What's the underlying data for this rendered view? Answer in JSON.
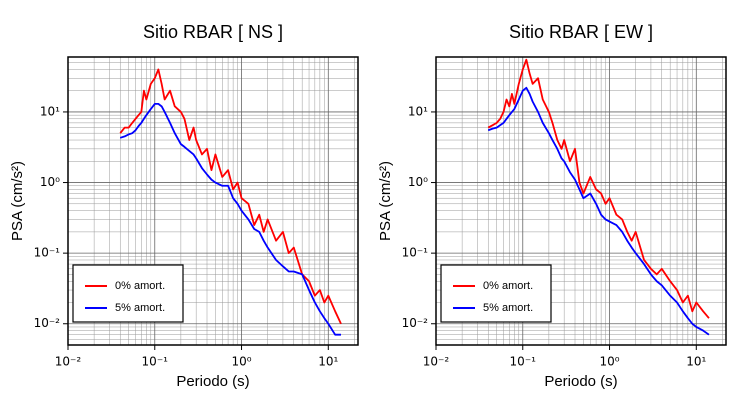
{
  "chart_data": [
    {
      "type": "line",
      "title": "Sitio RBAR [ NS ]",
      "x_label": "Periodo (s)",
      "y_label": "PSA (cm/s²)",
      "log_x": true,
      "log_y": true,
      "grid": true,
      "legend": "lower left",
      "xlim": [
        0.01,
        22
      ],
      "ylim": [
        0.005,
        60
      ],
      "xticks": [
        {
          "value": 0.01,
          "label": "10⁻²"
        },
        {
          "value": 0.1,
          "label": "10⁻¹"
        },
        {
          "value": 1,
          "label": "10⁰"
        },
        {
          "value": 10,
          "label": "10¹"
        }
      ],
      "yticks": [
        {
          "value": 0.01,
          "label": "10⁻²"
        },
        {
          "value": 0.1,
          "label": "10⁻¹"
        },
        {
          "value": 1,
          "label": "10⁰"
        },
        {
          "value": 10,
          "label": "10¹"
        }
      ],
      "x": [
        0.04,
        0.045,
        0.05,
        0.055,
        0.06,
        0.065,
        0.07,
        0.075,
        0.08,
        0.09,
        0.1,
        0.11,
        0.12,
        0.13,
        0.15,
        0.17,
        0.2,
        0.22,
        0.25,
        0.28,
        0.3,
        0.35,
        0.4,
        0.45,
        0.5,
        0.6,
        0.7,
        0.8,
        0.9,
        1.0,
        1.2,
        1.4,
        1.6,
        1.8,
        2.0,
        2.5,
        3.0,
        3.5,
        4.0,
        5.0,
        6.0,
        7.0,
        8.0,
        9.0,
        10,
        12,
        14
      ],
      "series": [
        {
          "name": "0% amort.",
          "color": "#ff0000",
          "values": [
            5,
            6,
            6,
            7,
            8,
            9,
            10,
            20,
            15,
            25,
            30,
            40,
            25,
            15,
            20,
            12,
            10,
            8,
            4,
            6,
            4,
            2.5,
            3,
            1.5,
            2.5,
            1.2,
            1.5,
            0.8,
            1.0,
            0.6,
            0.5,
            0.25,
            0.35,
            0.2,
            0.3,
            0.15,
            0.2,
            0.1,
            0.12,
            0.05,
            0.04,
            0.025,
            0.03,
            0.02,
            0.025,
            0.015,
            0.01
          ]
        },
        {
          "name": "5% amort.",
          "color": "#0000ff",
          "values": [
            4.3,
            4.5,
            4.8,
            5,
            5.5,
            6.3,
            7,
            8,
            9,
            11,
            13,
            13,
            12,
            10,
            7,
            5,
            3.5,
            3.2,
            2.8,
            2.5,
            2.2,
            1.6,
            1.3,
            1.1,
            1.0,
            0.9,
            0.9,
            0.6,
            0.5,
            0.4,
            0.3,
            0.22,
            0.2,
            0.15,
            0.12,
            0.08,
            0.065,
            0.055,
            0.055,
            0.05,
            0.03,
            0.02,
            0.015,
            0.012,
            0.01,
            0.007,
            0.007
          ]
        }
      ]
    },
    {
      "type": "line",
      "title": "Sitio RBAR [ EW ]",
      "x_label": "Periodo (s)",
      "y_label": "PSA (cm/s²)",
      "log_x": true,
      "log_y": true,
      "grid": true,
      "legend": "lower left",
      "xlim": [
        0.01,
        22
      ],
      "ylim": [
        0.005,
        60
      ],
      "xticks": [
        {
          "value": 0.01,
          "label": "10⁻²"
        },
        {
          "value": 0.1,
          "label": "10⁻¹"
        },
        {
          "value": 1,
          "label": "10⁰"
        },
        {
          "value": 10,
          "label": "10¹"
        }
      ],
      "yticks": [
        {
          "value": 0.01,
          "label": "10⁻²"
        },
        {
          "value": 0.1,
          "label": "10⁻¹"
        },
        {
          "value": 1,
          "label": "10⁰"
        },
        {
          "value": 10,
          "label": "10¹"
        }
      ],
      "x": [
        0.04,
        0.045,
        0.05,
        0.055,
        0.06,
        0.065,
        0.07,
        0.075,
        0.08,
        0.09,
        0.1,
        0.11,
        0.12,
        0.13,
        0.15,
        0.17,
        0.2,
        0.22,
        0.25,
        0.28,
        0.3,
        0.35,
        0.4,
        0.45,
        0.5,
        0.6,
        0.7,
        0.8,
        0.9,
        1.0,
        1.2,
        1.4,
        1.6,
        1.8,
        2.0,
        2.5,
        3.0,
        3.5,
        4.0,
        5.0,
        6.0,
        7.0,
        8.0,
        9.0,
        10,
        12,
        14
      ],
      "series": [
        {
          "name": "0% amort.",
          "color": "#ff0000",
          "values": [
            6,
            6.5,
            7,
            8,
            10,
            15,
            12,
            18,
            13,
            25,
            40,
            55,
            35,
            25,
            30,
            15,
            10,
            7,
            4,
            3,
            4,
            2,
            3,
            1.0,
            0.7,
            1.2,
            0.8,
            0.7,
            0.5,
            0.6,
            0.35,
            0.3,
            0.2,
            0.15,
            0.2,
            0.08,
            0.06,
            0.05,
            0.06,
            0.04,
            0.03,
            0.02,
            0.025,
            0.015,
            0.02,
            0.015,
            0.012
          ]
        },
        {
          "name": "5% amort.",
          "color": "#0000ff",
          "values": [
            5.5,
            5.8,
            6,
            6.5,
            7,
            8,
            9,
            10,
            11,
            15,
            20,
            22,
            18,
            14,
            10,
            7,
            5,
            4,
            3,
            2.2,
            2,
            1.4,
            1.1,
            0.8,
            0.6,
            0.7,
            0.5,
            0.35,
            0.3,
            0.28,
            0.25,
            0.2,
            0.15,
            0.12,
            0.1,
            0.07,
            0.05,
            0.04,
            0.035,
            0.025,
            0.02,
            0.015,
            0.012,
            0.01,
            0.009,
            0.008,
            0.007
          ]
        }
      ]
    }
  ]
}
